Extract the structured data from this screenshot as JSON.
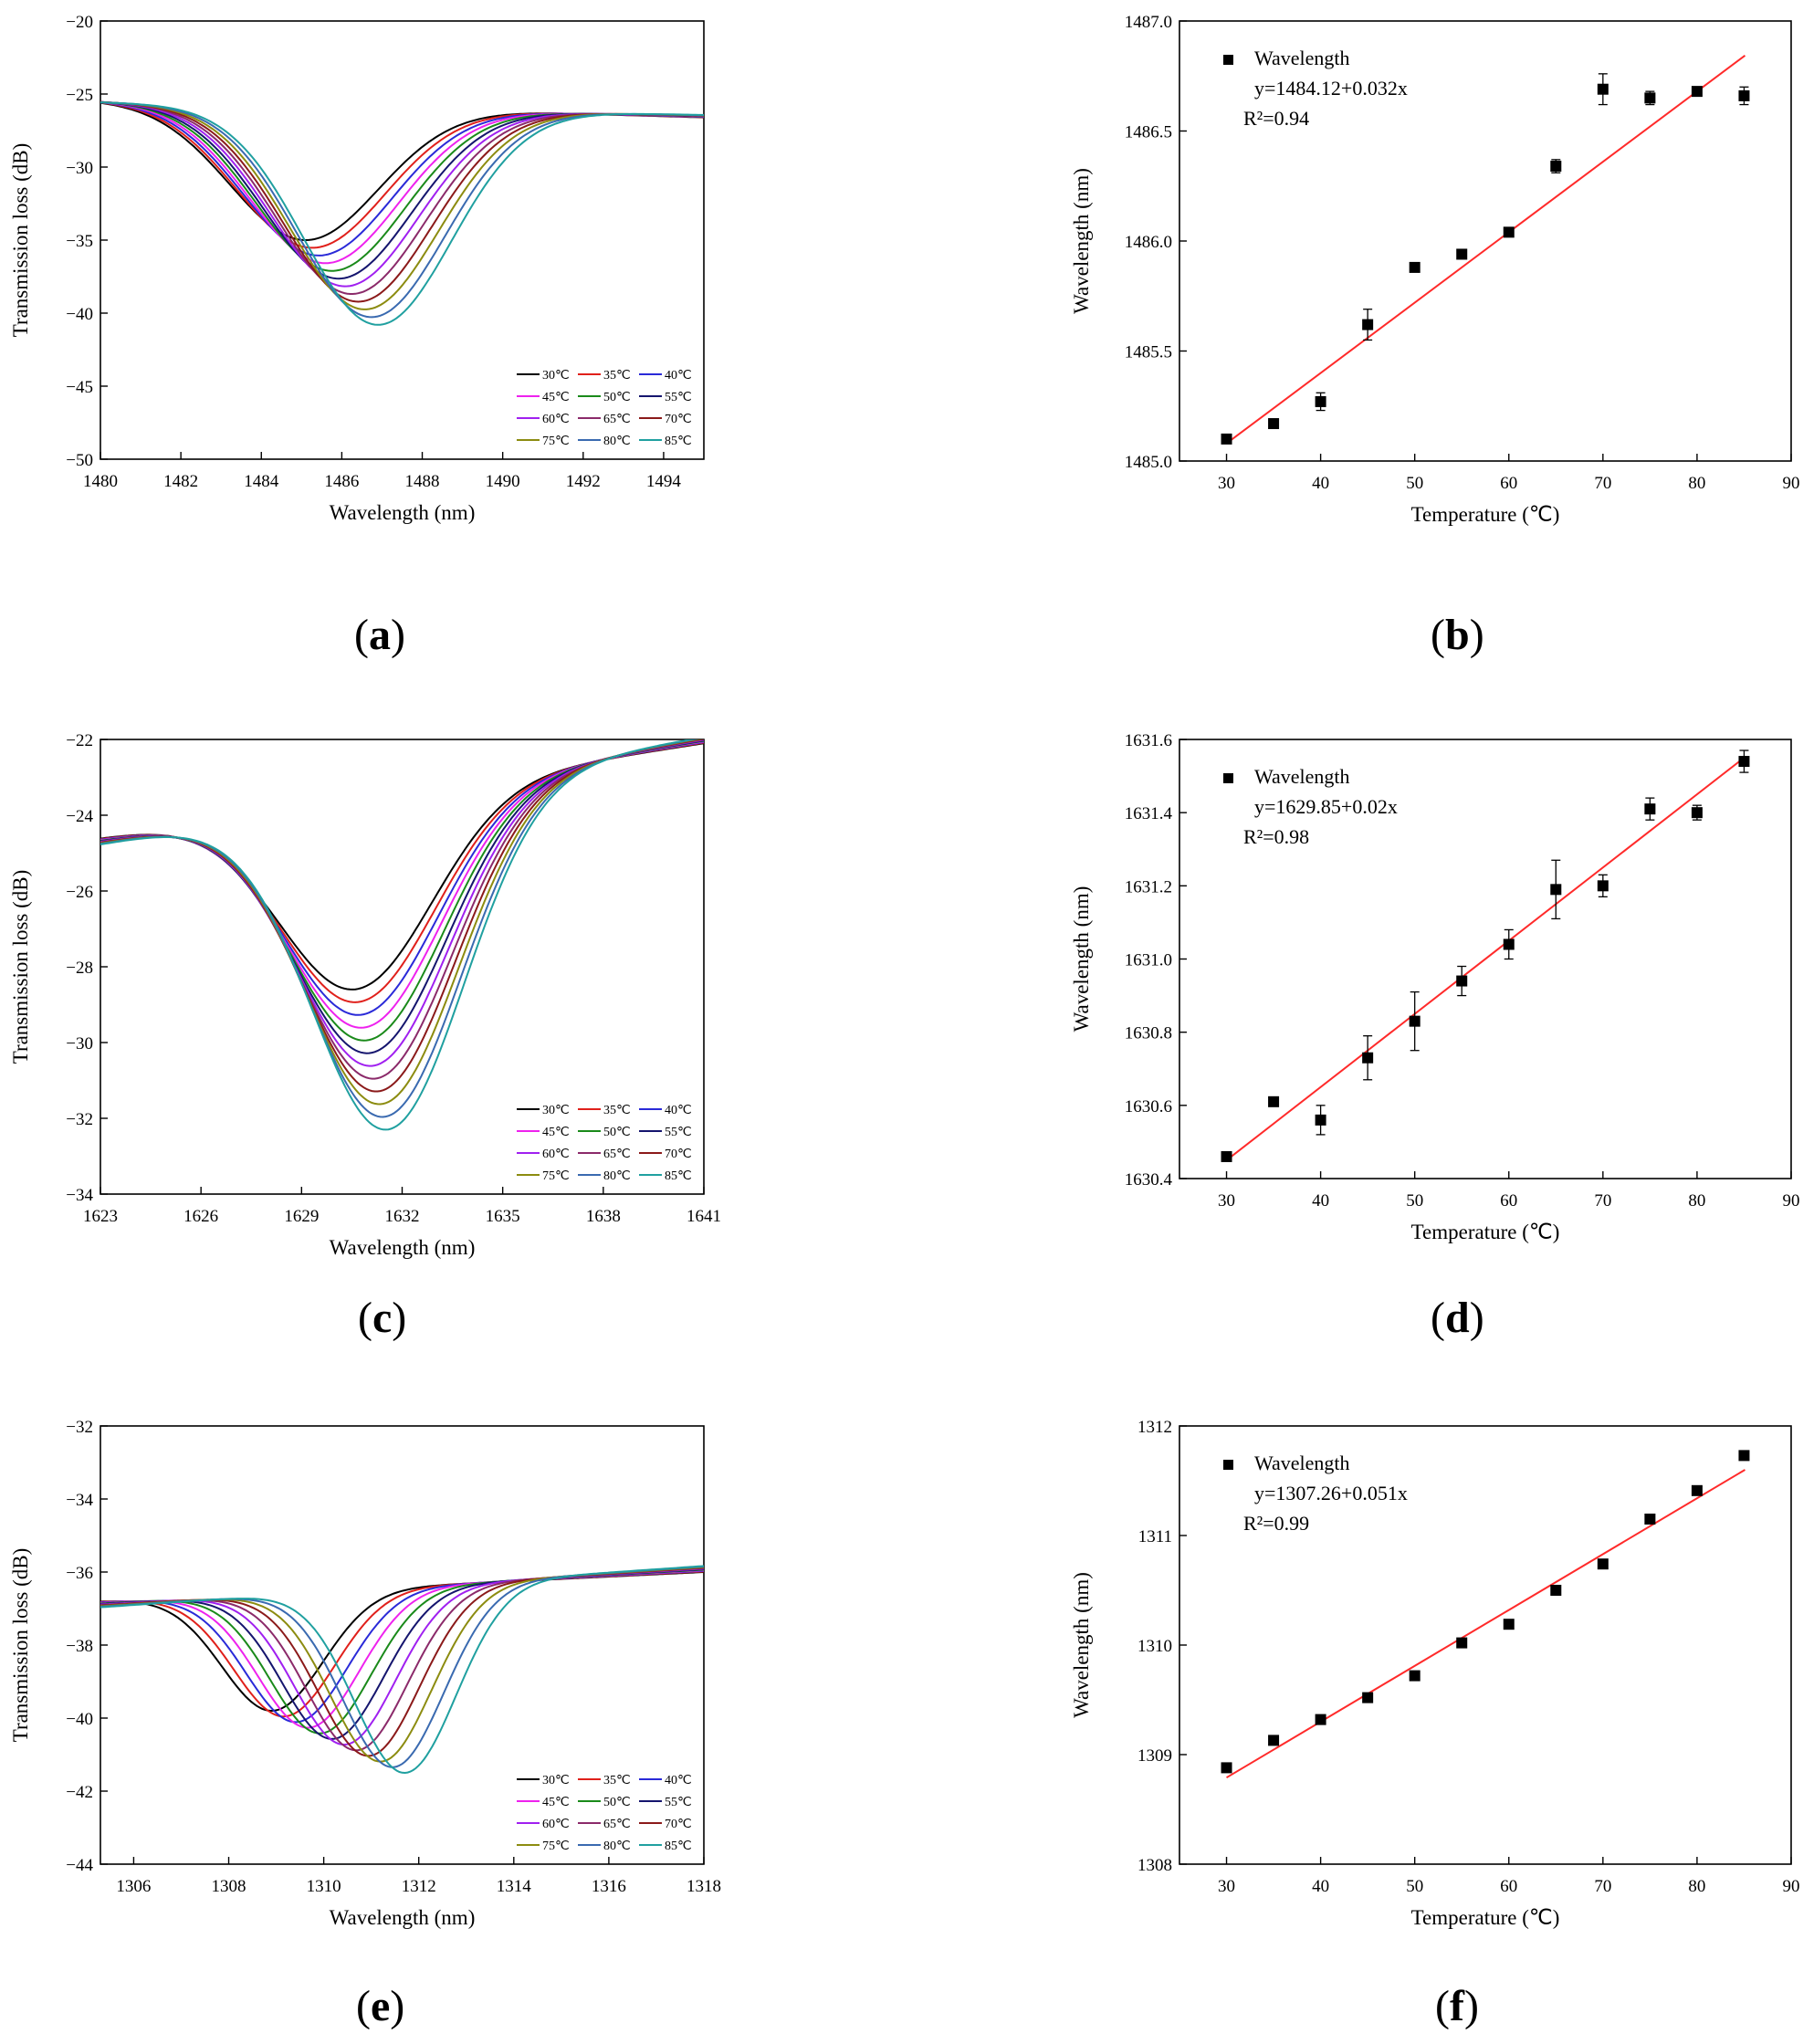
{
  "captions": [
    "a",
    "b",
    "c",
    "d",
    "e",
    "f"
  ],
  "chart_data": [
    {
      "panel": "a",
      "type": "line",
      "xlabel": "Wavelength (nm)",
      "ylabel": "Transmission loss (dB)",
      "xlim": [
        1480,
        1495
      ],
      "ylim": [
        -50,
        -20
      ],
      "xticks": [
        1480,
        1482,
        1484,
        1486,
        1488,
        1490,
        1492,
        1494
      ],
      "yticks": [
        -50,
        -45,
        -40,
        -35,
        -30,
        -25,
        -20
      ],
      "legend": "bottom-right",
      "series_colors": [
        "#000000",
        "#e0201b",
        "#2a2ad8",
        "#ee22ee",
        "#1a8a1a",
        "#15156e",
        "#a020f0",
        "#8b2a6a",
        "#8b1a1a",
        "#8c8c10",
        "#3a6ab0",
        "#20a0a0"
      ],
      "series_names": [
        "30℃",
        "35℃",
        "40℃",
        "45℃",
        "50℃",
        "55℃",
        "60℃",
        "65℃",
        "70℃",
        "75℃",
        "80℃",
        "85℃"
      ],
      "dip": {
        "start_center": 1485.1,
        "end_center": 1486.9,
        "start_depth": -35.0,
        "end_depth": -40.8,
        "baseline_left": -25.4,
        "baseline_right": -26.6,
        "width": 2.6
      }
    },
    {
      "panel": "b",
      "type": "scatter",
      "xlabel": "Temperature (℃)",
      "ylabel": "Wavelength (nm)",
      "xlim": [
        25,
        90
      ],
      "ylim": [
        1485.0,
        1487.0
      ],
      "xticks": [
        30,
        40,
        50,
        60,
        70,
        80,
        90
      ],
      "yticks": [
        1485.0,
        1485.5,
        1486.0,
        1486.5,
        1487.0
      ],
      "ytick_labels": [
        "1485.0",
        "1485.5",
        "1486.0",
        "1486.5",
        "1487.0"
      ],
      "x": [
        30,
        35,
        40,
        45,
        50,
        55,
        60,
        65,
        70,
        75,
        80,
        85
      ],
      "y": [
        1485.1,
        1485.17,
        1485.27,
        1485.62,
        1485.88,
        1485.94,
        1486.04,
        1486.34,
        1486.69,
        1486.65,
        1486.68,
        1486.66
      ],
      "err": [
        0.02,
        0.02,
        0.04,
        0.07,
        0.0,
        0.0,
        0.02,
        0.03,
        0.07,
        0.03,
        0.02,
        0.04
      ],
      "fit": {
        "intercept": 1484.12,
        "slope": 0.032,
        "color": "#ff2a2a"
      },
      "legend_label": "Wavelength",
      "equation": "y=1484.12+0.032x",
      "r2_label": "R²=0.94"
    },
    {
      "panel": "c",
      "type": "line",
      "xlabel": "Wavelength (nm)",
      "ylabel": "Transmission loss (dB)",
      "xlim": [
        1623,
        1641
      ],
      "ylim": [
        -34,
        -22
      ],
      "xticks": [
        1623,
        1626,
        1629,
        1632,
        1635,
        1638,
        1641
      ],
      "yticks": [
        -34,
        -32,
        -30,
        -28,
        -26,
        -24,
        -22
      ],
      "legend": "bottom-right",
      "series_colors": [
        "#000000",
        "#e0201b",
        "#2a2ad8",
        "#ee22ee",
        "#1a8a1a",
        "#15156e",
        "#a020f0",
        "#8b2a6a",
        "#8b1a1a",
        "#8c8c10",
        "#3a6ab0",
        "#20a0a0"
      ],
      "series_names": [
        "30℃",
        "35℃",
        "40℃",
        "45℃",
        "50℃",
        "55℃",
        "60℃",
        "65℃",
        "70℃",
        "75℃",
        "80℃",
        "85℃"
      ],
      "dip": {
        "start_center": 1630.5,
        "end_center": 1631.5,
        "start_depth": -28.6,
        "end_depth": -32.3,
        "baseline_left": -24.6,
        "baseline_right": -22.1,
        "width": 3.2
      }
    },
    {
      "panel": "d",
      "type": "scatter",
      "xlabel": "Temperature (℃)",
      "ylabel": "Wavelength (nm)",
      "xlim": [
        25,
        90
      ],
      "ylim": [
        1630.4,
        1631.6
      ],
      "xticks": [
        30,
        40,
        50,
        60,
        70,
        80,
        90
      ],
      "yticks": [
        1630.4,
        1630.6,
        1630.8,
        1631.0,
        1631.2,
        1631.4,
        1631.6
      ],
      "ytick_labels": [
        "1630.4",
        "1630.6",
        "1630.8",
        "1631.0",
        "1631.2",
        "1631.4",
        "1631.6"
      ],
      "x": [
        30,
        35,
        40,
        45,
        50,
        55,
        60,
        65,
        70,
        75,
        80,
        85
      ],
      "y": [
        1630.46,
        1630.61,
        1630.56,
        1630.73,
        1630.83,
        1630.94,
        1631.04,
        1631.19,
        1631.2,
        1631.41,
        1631.4,
        1631.54
      ],
      "err": [
        0.01,
        0.0,
        0.04,
        0.06,
        0.08,
        0.04,
        0.04,
        0.08,
        0.03,
        0.03,
        0.02,
        0.03
      ],
      "fit": {
        "intercept": 1629.85,
        "slope": 0.02,
        "color": "#ff2a2a"
      },
      "legend_label": "Wavelength",
      "equation": "y=1629.85+0.02x",
      "r2_label": "R²=0.98"
    },
    {
      "panel": "e",
      "type": "line",
      "xlabel": "Wavelength (nm)",
      "ylabel": "Transmission loss (dB)",
      "xlim": [
        1305.3,
        1318
      ],
      "ylim": [
        -44,
        -32
      ],
      "xticks": [
        1306,
        1308,
        1310,
        1312,
        1314,
        1316,
        1318
      ],
      "yticks": [
        -44,
        -42,
        -40,
        -38,
        -36,
        -34,
        -32
      ],
      "legend": "bottom-right",
      "series_colors": [
        "#000000",
        "#e0201b",
        "#2a2ad8",
        "#ee22ee",
        "#1a8a1a",
        "#15156e",
        "#a020f0",
        "#8b2a6a",
        "#8b1a1a",
        "#8c8c10",
        "#3a6ab0",
        "#20a0a0"
      ],
      "series_names": [
        "30℃",
        "35℃",
        "40℃",
        "45℃",
        "50℃",
        "55℃",
        "60℃",
        "65℃",
        "70℃",
        "75℃",
        "80℃",
        "85℃"
      ],
      "dip": {
        "start_center": 1308.9,
        "end_center": 1311.7,
        "start_depth": -39.8,
        "end_depth": -41.5,
        "baseline_left": -36.8,
        "baseline_right": -36.0,
        "width": 1.5
      }
    },
    {
      "panel": "f",
      "type": "scatter",
      "xlabel": "Temperature (℃)",
      "ylabel": "Wavelength (nm)",
      "xlim": [
        25,
        90
      ],
      "ylim": [
        1308,
        1312
      ],
      "xticks": [
        30,
        40,
        50,
        60,
        70,
        80,
        90
      ],
      "yticks": [
        1308,
        1309,
        1310,
        1311,
        1312
      ],
      "ytick_labels": [
        "1308",
        "1309",
        "1310",
        "1311",
        "1312"
      ],
      "x": [
        30,
        35,
        40,
        45,
        50,
        55,
        60,
        65,
        70,
        75,
        80,
        85
      ],
      "y": [
        1308.88,
        1309.13,
        1309.32,
        1309.52,
        1309.72,
        1310.02,
        1310.19,
        1310.5,
        1310.74,
        1311.15,
        1311.41,
        1311.73
      ],
      "err": [
        0.0,
        0.0,
        0.0,
        0.0,
        0.03,
        0.0,
        0.0,
        0.0,
        0.0,
        0.0,
        0.0,
        0.0
      ],
      "fit": {
        "intercept": 1307.26,
        "slope": 0.051,
        "color": "#ff2a2a"
      },
      "legend_label": "Wavelength",
      "equation": "y=1307.26+0.051x",
      "r2_label": "R²=0.99"
    }
  ]
}
